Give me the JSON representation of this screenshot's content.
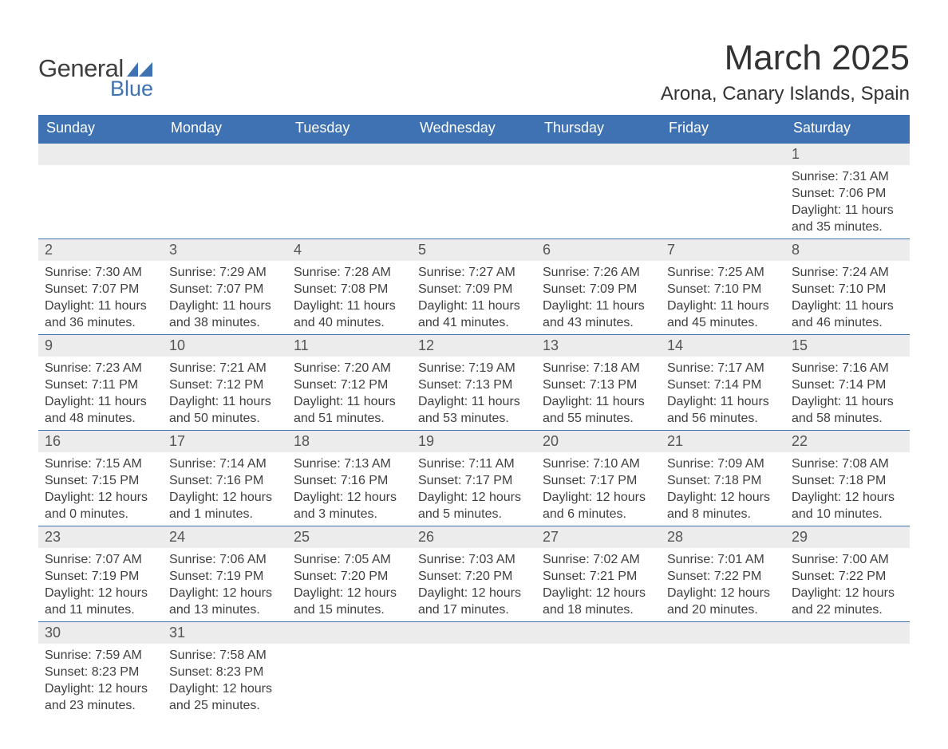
{
  "brand": {
    "word1": "General",
    "word2": "Blue",
    "icon_color": "#3f72b2",
    "word1_color": "#3f3f3f",
    "word2_color": "#3f72b2"
  },
  "title": "March 2025",
  "location": "Arona, Canary Islands, Spain",
  "colors": {
    "header_bg": "#3f72b2",
    "header_text": "#ffffff",
    "daynum_bg": "#ececec",
    "rule": "#3f72b2",
    "body_text": "#404040",
    "page_bg": "#ffffff"
  },
  "typography": {
    "title_fontsize_pt": 33,
    "location_fontsize_pt": 18,
    "th_fontsize_pt": 14,
    "cell_fontsize_pt": 12,
    "daynum_fontsize_pt": 14
  },
  "layout": {
    "columns": 7,
    "col_width_ratio": [
      1,
      1,
      1,
      1,
      1,
      1,
      1
    ]
  },
  "weekdays": [
    "Sunday",
    "Monday",
    "Tuesday",
    "Wednesday",
    "Thursday",
    "Friday",
    "Saturday"
  ],
  "labels": {
    "sunrise": "Sunrise",
    "sunset": "Sunset",
    "daylight": "Daylight"
  },
  "weeks": [
    [
      null,
      null,
      null,
      null,
      null,
      null,
      {
        "day": 1,
        "sunrise": "7:31 AM",
        "sunset": "7:06 PM",
        "daylight_h": 11,
        "daylight_m": 35
      }
    ],
    [
      {
        "day": 2,
        "sunrise": "7:30 AM",
        "sunset": "7:07 PM",
        "daylight_h": 11,
        "daylight_m": 36
      },
      {
        "day": 3,
        "sunrise": "7:29 AM",
        "sunset": "7:07 PM",
        "daylight_h": 11,
        "daylight_m": 38
      },
      {
        "day": 4,
        "sunrise": "7:28 AM",
        "sunset": "7:08 PM",
        "daylight_h": 11,
        "daylight_m": 40
      },
      {
        "day": 5,
        "sunrise": "7:27 AM",
        "sunset": "7:09 PM",
        "daylight_h": 11,
        "daylight_m": 41
      },
      {
        "day": 6,
        "sunrise": "7:26 AM",
        "sunset": "7:09 PM",
        "daylight_h": 11,
        "daylight_m": 43
      },
      {
        "day": 7,
        "sunrise": "7:25 AM",
        "sunset": "7:10 PM",
        "daylight_h": 11,
        "daylight_m": 45
      },
      {
        "day": 8,
        "sunrise": "7:24 AM",
        "sunset": "7:10 PM",
        "daylight_h": 11,
        "daylight_m": 46
      }
    ],
    [
      {
        "day": 9,
        "sunrise": "7:23 AM",
        "sunset": "7:11 PM",
        "daylight_h": 11,
        "daylight_m": 48
      },
      {
        "day": 10,
        "sunrise": "7:21 AM",
        "sunset": "7:12 PM",
        "daylight_h": 11,
        "daylight_m": 50
      },
      {
        "day": 11,
        "sunrise": "7:20 AM",
        "sunset": "7:12 PM",
        "daylight_h": 11,
        "daylight_m": 51
      },
      {
        "day": 12,
        "sunrise": "7:19 AM",
        "sunset": "7:13 PM",
        "daylight_h": 11,
        "daylight_m": 53
      },
      {
        "day": 13,
        "sunrise": "7:18 AM",
        "sunset": "7:13 PM",
        "daylight_h": 11,
        "daylight_m": 55
      },
      {
        "day": 14,
        "sunrise": "7:17 AM",
        "sunset": "7:14 PM",
        "daylight_h": 11,
        "daylight_m": 56
      },
      {
        "day": 15,
        "sunrise": "7:16 AM",
        "sunset": "7:14 PM",
        "daylight_h": 11,
        "daylight_m": 58
      }
    ],
    [
      {
        "day": 16,
        "sunrise": "7:15 AM",
        "sunset": "7:15 PM",
        "daylight_h": 12,
        "daylight_m": 0
      },
      {
        "day": 17,
        "sunrise": "7:14 AM",
        "sunset": "7:16 PM",
        "daylight_h": 12,
        "daylight_m": 1
      },
      {
        "day": 18,
        "sunrise": "7:13 AM",
        "sunset": "7:16 PM",
        "daylight_h": 12,
        "daylight_m": 3
      },
      {
        "day": 19,
        "sunrise": "7:11 AM",
        "sunset": "7:17 PM",
        "daylight_h": 12,
        "daylight_m": 5
      },
      {
        "day": 20,
        "sunrise": "7:10 AM",
        "sunset": "7:17 PM",
        "daylight_h": 12,
        "daylight_m": 6
      },
      {
        "day": 21,
        "sunrise": "7:09 AM",
        "sunset": "7:18 PM",
        "daylight_h": 12,
        "daylight_m": 8
      },
      {
        "day": 22,
        "sunrise": "7:08 AM",
        "sunset": "7:18 PM",
        "daylight_h": 12,
        "daylight_m": 10
      }
    ],
    [
      {
        "day": 23,
        "sunrise": "7:07 AM",
        "sunset": "7:19 PM",
        "daylight_h": 12,
        "daylight_m": 11
      },
      {
        "day": 24,
        "sunrise": "7:06 AM",
        "sunset": "7:19 PM",
        "daylight_h": 12,
        "daylight_m": 13
      },
      {
        "day": 25,
        "sunrise": "7:05 AM",
        "sunset": "7:20 PM",
        "daylight_h": 12,
        "daylight_m": 15
      },
      {
        "day": 26,
        "sunrise": "7:03 AM",
        "sunset": "7:20 PM",
        "daylight_h": 12,
        "daylight_m": 17
      },
      {
        "day": 27,
        "sunrise": "7:02 AM",
        "sunset": "7:21 PM",
        "daylight_h": 12,
        "daylight_m": 18
      },
      {
        "day": 28,
        "sunrise": "7:01 AM",
        "sunset": "7:22 PM",
        "daylight_h": 12,
        "daylight_m": 20
      },
      {
        "day": 29,
        "sunrise": "7:00 AM",
        "sunset": "7:22 PM",
        "daylight_h": 12,
        "daylight_m": 22
      }
    ],
    [
      {
        "day": 30,
        "sunrise": "7:59 AM",
        "sunset": "8:23 PM",
        "daylight_h": 12,
        "daylight_m": 23
      },
      {
        "day": 31,
        "sunrise": "7:58 AM",
        "sunset": "8:23 PM",
        "daylight_h": 12,
        "daylight_m": 25
      },
      null,
      null,
      null,
      null,
      null
    ]
  ]
}
